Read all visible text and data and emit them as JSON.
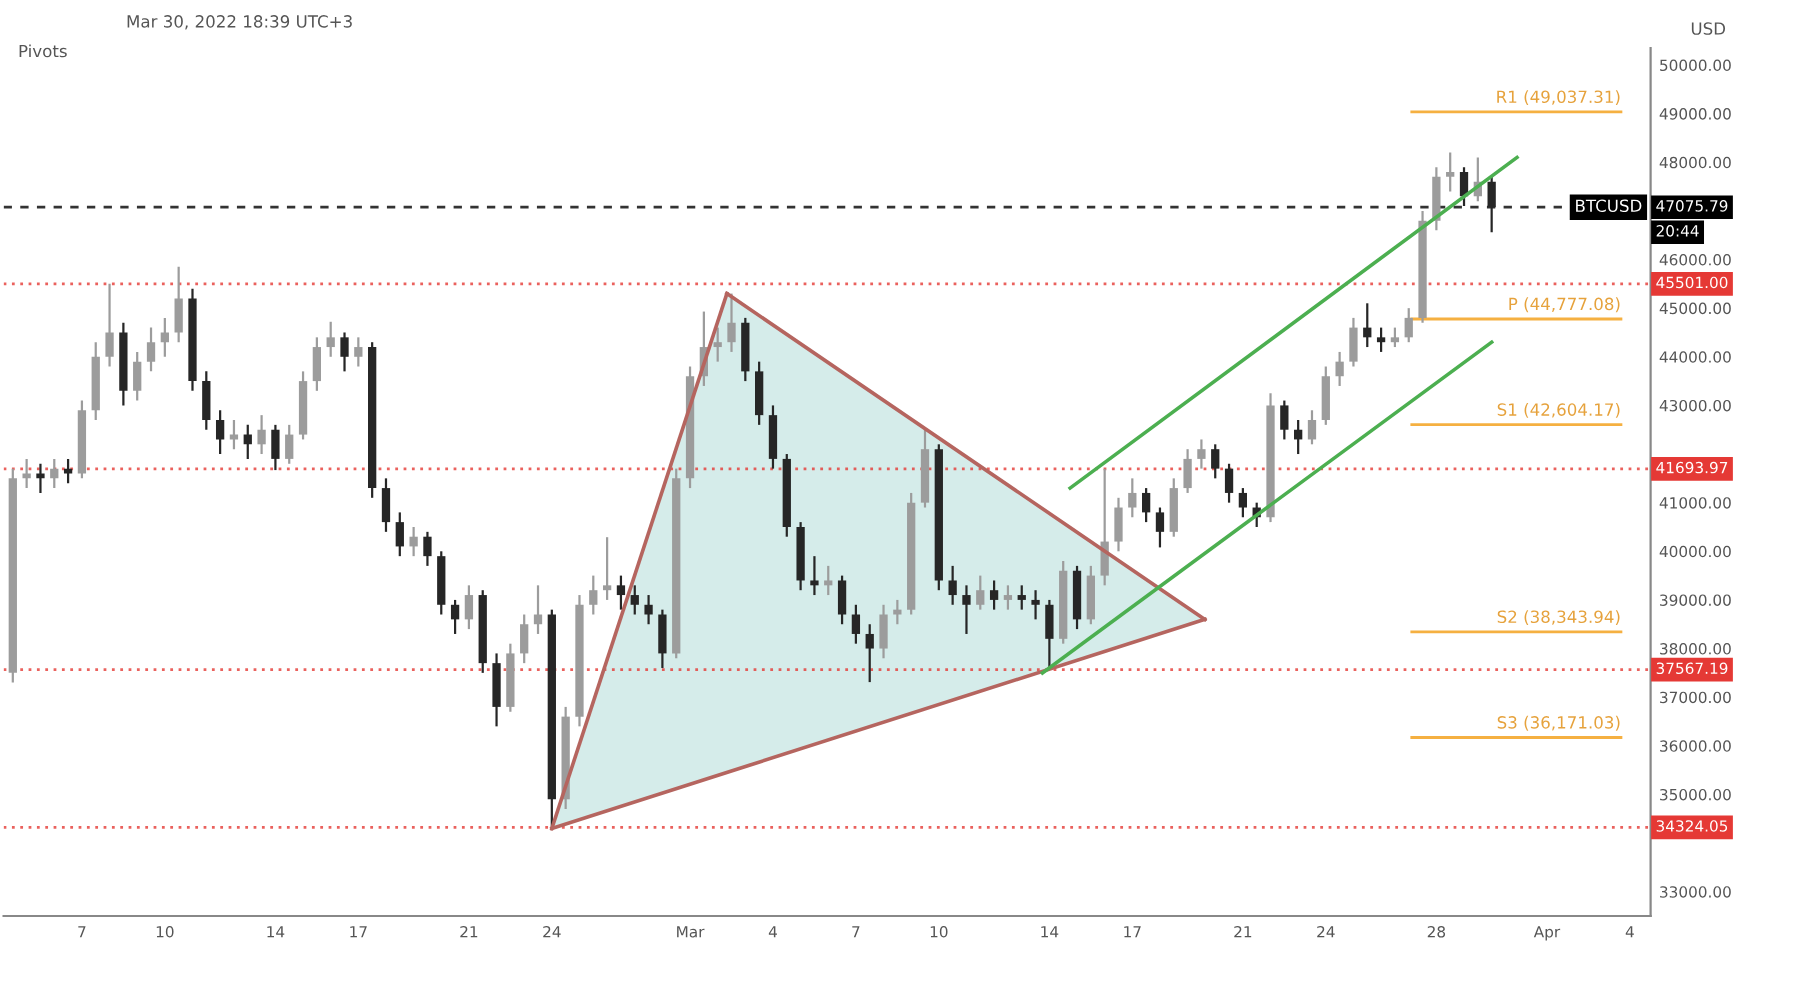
{
  "chart_data": {
    "type": "candlestick",
    "ylabel": "USD",
    "annotations": [
      "Mar 30, 2022 18:39 UTC+3",
      "Pivots",
      "BTCUSD",
      "20:44"
    ],
    "x": [
      "2022-02-04T12:00",
      "2022-02-05T00:00",
      "2022-02-05T12:00",
      "2022-02-06T00:00",
      "2022-02-06T12:00",
      "2022-02-07T00:00",
      "2022-02-07T12:00",
      "2022-02-08T00:00",
      "2022-02-08T12:00",
      "2022-02-09T00:00",
      "2022-02-09T12:00",
      "2022-02-10T00:00",
      "2022-02-10T12:00",
      "2022-02-11T00:00",
      "2022-02-11T12:00",
      "2022-02-12T00:00",
      "2022-02-12T12:00",
      "2022-02-13T00:00",
      "2022-02-13T12:00",
      "2022-02-14T00:00",
      "2022-02-14T12:00",
      "2022-02-15T00:00",
      "2022-02-15T12:00",
      "2022-02-16T00:00",
      "2022-02-16T12:00",
      "2022-02-17T00:00",
      "2022-02-17T12:00",
      "2022-02-18T00:00",
      "2022-02-18T12:00",
      "2022-02-19T00:00",
      "2022-02-19T12:00",
      "2022-02-20T00:00",
      "2022-02-20T12:00",
      "2022-02-21T00:00",
      "2022-02-21T12:00",
      "2022-02-22T00:00",
      "2022-02-22T12:00",
      "2022-02-23T00:00",
      "2022-02-23T12:00",
      "2022-02-24T00:00",
      "2022-02-24T12:00",
      "2022-02-25T00:00",
      "2022-02-25T12:00",
      "2022-02-26T00:00",
      "2022-02-26T12:00",
      "2022-02-27T00:00",
      "2022-02-27T12:00",
      "2022-02-28T00:00",
      "2022-02-28T12:00",
      "2022-03-01T00:00",
      "2022-03-01T12:00",
      "2022-03-02T00:00",
      "2022-03-02T12:00",
      "2022-03-03T00:00",
      "2022-03-03T12:00",
      "2022-03-04T00:00",
      "2022-03-04T12:00",
      "2022-03-05T00:00",
      "2022-03-05T12:00",
      "2022-03-06T00:00",
      "2022-03-06T12:00",
      "2022-03-07T00:00",
      "2022-03-07T12:00",
      "2022-03-08T00:00",
      "2022-03-08T12:00",
      "2022-03-09T00:00",
      "2022-03-09T12:00",
      "2022-03-10T00:00",
      "2022-03-10T12:00",
      "2022-03-11T00:00",
      "2022-03-11T12:00",
      "2022-03-12T00:00",
      "2022-03-12T12:00",
      "2022-03-13T00:00",
      "2022-03-13T12:00",
      "2022-03-14T00:00",
      "2022-03-14T12:00",
      "2022-03-15T00:00",
      "2022-03-15T12:00",
      "2022-03-16T00:00",
      "2022-03-16T12:00",
      "2022-03-17T00:00",
      "2022-03-17T12:00",
      "2022-03-18T00:00",
      "2022-03-18T12:00",
      "2022-03-19T00:00",
      "2022-03-19T12:00",
      "2022-03-20T00:00",
      "2022-03-20T12:00",
      "2022-03-21T00:00",
      "2022-03-21T12:00",
      "2022-03-22T00:00",
      "2022-03-22T12:00",
      "2022-03-23T00:00",
      "2022-03-23T12:00",
      "2022-03-24T00:00",
      "2022-03-24T12:00",
      "2022-03-25T00:00",
      "2022-03-25T12:00",
      "2022-03-26T00:00",
      "2022-03-26T12:00",
      "2022-03-27T00:00",
      "2022-03-27T12:00",
      "2022-03-28T00:00",
      "2022-03-28T12:00",
      "2022-03-29T00:00",
      "2022-03-29T12:00",
      "2022-03-30T00:00"
    ],
    "ohlc": [
      [
        37500,
        41700,
        37300,
        41500
      ],
      [
        41500,
        41900,
        41300,
        41600
      ],
      [
        41600,
        41800,
        41200,
        41500
      ],
      [
        41500,
        41900,
        41300,
        41700
      ],
      [
        41700,
        41900,
        41400,
        41600
      ],
      [
        41600,
        43100,
        41500,
        42900
      ],
      [
        42900,
        44300,
        42700,
        44000
      ],
      [
        44000,
        45500,
        43800,
        44500
      ],
      [
        44500,
        44700,
        43000,
        43300
      ],
      [
        43300,
        44100,
        43100,
        43900
      ],
      [
        43900,
        44600,
        43700,
        44300
      ],
      [
        44300,
        44800,
        44000,
        44500
      ],
      [
        44500,
        45850,
        44300,
        45200
      ],
      [
        45200,
        45400,
        43300,
        43500
      ],
      [
        43500,
        43700,
        42500,
        42700
      ],
      [
        42700,
        42900,
        42000,
        42300
      ],
      [
        42300,
        42700,
        42100,
        42400
      ],
      [
        42400,
        42600,
        41900,
        42200
      ],
      [
        42200,
        42800,
        42000,
        42500
      ],
      [
        42500,
        42600,
        41670,
        41900
      ],
      [
        41900,
        42600,
        41800,
        42400
      ],
      [
        42400,
        43700,
        42300,
        43500
      ],
      [
        43500,
        44400,
        43300,
        44200
      ],
      [
        44200,
        44720,
        44000,
        44400
      ],
      [
        44400,
        44500,
        43700,
        44000
      ],
      [
        44000,
        44400,
        43800,
        44200
      ],
      [
        44200,
        44300,
        41100,
        41300
      ],
      [
        41300,
        41500,
        40400,
        40600
      ],
      [
        40600,
        40800,
        39900,
        40100
      ],
      [
        40100,
        40500,
        39900,
        40300
      ],
      [
        40300,
        40400,
        39700,
        39900
      ],
      [
        39900,
        40000,
        38700,
        38900
      ],
      [
        38900,
        39000,
        38300,
        38600
      ],
      [
        38600,
        39300,
        38400,
        39100
      ],
      [
        39100,
        39200,
        37500,
        37700
      ],
      [
        37700,
        37900,
        36400,
        36800
      ],
      [
        36800,
        38100,
        36700,
        37900
      ],
      [
        37900,
        38700,
        37700,
        38500
      ],
      [
        38500,
        39300,
        38300,
        38700
      ],
      [
        38700,
        38800,
        34324,
        34900
      ],
      [
        34900,
        36800,
        34700,
        36600
      ],
      [
        36600,
        39100,
        36400,
        38900
      ],
      [
        38900,
        39500,
        38700,
        39200
      ],
      [
        39200,
        40290,
        39000,
        39300
      ],
      [
        39300,
        39500,
        38800,
        39100
      ],
      [
        39100,
        39300,
        38700,
        38900
      ],
      [
        38900,
        39100,
        38500,
        38700
      ],
      [
        38700,
        38800,
        37600,
        37900
      ],
      [
        37900,
        41700,
        37800,
        41500
      ],
      [
        41500,
        43800,
        41300,
        43600
      ],
      [
        43600,
        44930,
        43400,
        44200
      ],
      [
        44200,
        44600,
        43900,
        44300
      ],
      [
        44300,
        45300,
        44100,
        44700
      ],
      [
        44700,
        44800,
        43500,
        43700
      ],
      [
        43700,
        43900,
        42600,
        42800
      ],
      [
        42800,
        43000,
        41700,
        41900
      ],
      [
        41900,
        42000,
        40300,
        40500
      ],
      [
        40500,
        40600,
        39200,
        39400
      ],
      [
        39400,
        39900,
        39100,
        39300
      ],
      [
        39300,
        39700,
        39100,
        39400
      ],
      [
        39400,
        39500,
        38500,
        38700
      ],
      [
        38700,
        38900,
        38100,
        38300
      ],
      [
        38300,
        38500,
        37310,
        38000
      ],
      [
        38000,
        38900,
        37800,
        38700
      ],
      [
        38700,
        39000,
        38500,
        38800
      ],
      [
        38800,
        41200,
        38700,
        41000
      ],
      [
        41000,
        42530,
        40900,
        42100
      ],
      [
        42100,
        42200,
        39200,
        39400
      ],
      [
        39400,
        39700,
        38900,
        39100
      ],
      [
        39100,
        39300,
        38300,
        38900
      ],
      [
        38900,
        39500,
        38800,
        39200
      ],
      [
        39200,
        39400,
        38800,
        39000
      ],
      [
        39000,
        39300,
        38800,
        39100
      ],
      [
        39100,
        39300,
        38800,
        39000
      ],
      [
        39000,
        39200,
        38600,
        38900
      ],
      [
        38900,
        39000,
        37567,
        38200
      ],
      [
        38200,
        39800,
        38100,
        39600
      ],
      [
        39600,
        39700,
        38400,
        38600
      ],
      [
        38600,
        39700,
        38500,
        39500
      ],
      [
        39500,
        41694,
        39300,
        40200
      ],
      [
        40200,
        41100,
        40000,
        40900
      ],
      [
        40900,
        41500,
        40700,
        41200
      ],
      [
        41200,
        41300,
        40600,
        40800
      ],
      [
        40800,
        40900,
        40080,
        40400
      ],
      [
        40400,
        41500,
        40300,
        41300
      ],
      [
        41300,
        42100,
        41200,
        41900
      ],
      [
        41900,
        42300,
        41700,
        42100
      ],
      [
        42100,
        42200,
        41500,
        41700
      ],
      [
        41700,
        41800,
        41000,
        41200
      ],
      [
        41200,
        41300,
        40700,
        40900
      ],
      [
        40900,
        41000,
        40500,
        40700
      ],
      [
        40700,
        43250,
        40600,
        43000
      ],
      [
        43000,
        43100,
        42300,
        42500
      ],
      [
        42500,
        42700,
        42000,
        42300
      ],
      [
        42300,
        42900,
        42200,
        42700
      ],
      [
        42700,
        43800,
        42600,
        43600
      ],
      [
        43600,
        44100,
        43400,
        43900
      ],
      [
        43900,
        44800,
        43800,
        44600
      ],
      [
        44600,
        45100,
        44200,
        44400
      ],
      [
        44400,
        44600,
        44100,
        44300
      ],
      [
        44300,
        44600,
        44200,
        44400
      ],
      [
        44400,
        45000,
        44300,
        44800
      ],
      [
        44800,
        47000,
        44700,
        46800
      ],
      [
        46800,
        47900,
        46600,
        47700
      ],
      [
        47700,
        48200,
        47400,
        47800
      ],
      [
        47800,
        47900,
        47100,
        47300
      ],
      [
        47300,
        48100,
        47200,
        47600
      ],
      [
        47600,
        47700,
        46560,
        47075.79
      ]
    ],
    "series": [
      {
        "type": "line",
        "color": "#b5655f",
        "x": [
          "2022-02-24T00:00",
          "2022-03-02T08:00"
        ],
        "values": [
          34300,
          45300
        ]
      },
      {
        "type": "line",
        "color": "#b5655f",
        "x": [
          "2022-03-02T08:00",
          "2022-03-19T15:00"
        ],
        "values": [
          45300,
          38600
        ]
      },
      {
        "type": "line",
        "color": "#b5655f",
        "x": [
          "2022-02-24T00:00",
          "2022-03-19T15:00"
        ],
        "values": [
          34300,
          38600
        ]
      },
      {
        "type": "line",
        "color": "#4caf50",
        "x": [
          "2022-03-14T18:00",
          "2022-03-30T22:00"
        ],
        "values": [
          41300,
          48100
        ]
      },
      {
        "type": "line",
        "color": "#4caf50",
        "x": [
          "2022-03-13T18:00",
          "2022-03-30T00:00"
        ],
        "values": [
          37500,
          44300
        ]
      }
    ],
    "ref_lines": [
      {
        "axis": "y",
        "value": 45501.0,
        "label": "45501.00",
        "color": "#e53935",
        "line_style": "dotted"
      },
      {
        "axis": "y",
        "value": 41693.97,
        "label": "41693.97",
        "color": "#e53935",
        "line_style": "dotted"
      },
      {
        "axis": "y",
        "value": 37567.19,
        "label": "37567.19",
        "color": "#e53935",
        "line_style": "dotted"
      },
      {
        "axis": "y",
        "value": 34324.05,
        "label": "34324.05",
        "color": "#e53935",
        "line_style": "dotted"
      },
      {
        "axis": "y",
        "value": 47075.79,
        "label": "47075.79",
        "color": "#000000",
        "line_style": "dashed"
      },
      {
        "axis": "y",
        "value": 49037.31,
        "label": "R1 (49,037.31)",
        "color": "#f5b041",
        "line_style": "solid"
      },
      {
        "axis": "y",
        "value": 44777.08,
        "label": "P (44,777.08)",
        "color": "#f5b041",
        "line_style": "solid"
      },
      {
        "axis": "y",
        "value": 42604.17,
        "label": "S1 (42,604.17)",
        "color": "#f5b041",
        "line_style": "solid"
      },
      {
        "axis": "y",
        "value": 38343.94,
        "label": "S2 (38,343.94)",
        "color": "#f5b041",
        "line_style": "solid"
      },
      {
        "axis": "y",
        "value": 36171.03,
        "label": "S3 (36,171.03)",
        "color": "#f5b041",
        "line_style": "solid"
      }
    ],
    "xlim": [
      "2022-02-04T04:00",
      "2022-04-04T18:00"
    ],
    "xticks": [
      {
        "value": "2022-02-07",
        "label": "7"
      },
      {
        "value": "2022-02-10",
        "label": "10"
      },
      {
        "value": "2022-02-14",
        "label": "14"
      },
      {
        "value": "2022-02-17",
        "label": "17"
      },
      {
        "value": "2022-02-21",
        "label": "21"
      },
      {
        "value": "2022-02-24",
        "label": "24"
      },
      {
        "value": "2022-03-01",
        "label": "Mar"
      },
      {
        "value": "2022-03-04",
        "label": "4"
      },
      {
        "value": "2022-03-07",
        "label": "7"
      },
      {
        "value": "2022-03-10",
        "label": "10"
      },
      {
        "value": "2022-03-14",
        "label": "14"
      },
      {
        "value": "2022-03-17",
        "label": "17"
      },
      {
        "value": "2022-03-21",
        "label": "21"
      },
      {
        "value": "2022-03-24",
        "label": "24"
      },
      {
        "value": "2022-03-28",
        "label": "28"
      },
      {
        "value": "2022-04-01",
        "label": "Apr"
      },
      {
        "value": "2022-04-04",
        "label": "4"
      }
    ],
    "ylim": [
      32500,
      50350
    ],
    "yticks": [
      {
        "value": 33000,
        "label": "33000.00"
      },
      {
        "value": 35000,
        "label": "35000.00"
      },
      {
        "value": 36000,
        "label": "36000.00"
      },
      {
        "value": 37000,
        "label": "37000.00"
      },
      {
        "value": 38000,
        "label": "38000.00"
      },
      {
        "value": 39000,
        "label": "39000.00"
      },
      {
        "value": 40000,
        "label": "40000.00"
      },
      {
        "value": 41000,
        "label": "41000.00"
      },
      {
        "value": 43000,
        "label": "43000.00"
      },
      {
        "value": 44000,
        "label": "44000.00"
      },
      {
        "value": 45000,
        "label": "45000.00"
      },
      {
        "value": 46000,
        "label": "46000.00"
      },
      {
        "value": 48000,
        "label": "48000.00"
      },
      {
        "value": 49000,
        "label": "49000.00"
      },
      {
        "value": 50000,
        "label": "50000.00"
      }
    ],
    "grid": false,
    "legend": false
  }
}
